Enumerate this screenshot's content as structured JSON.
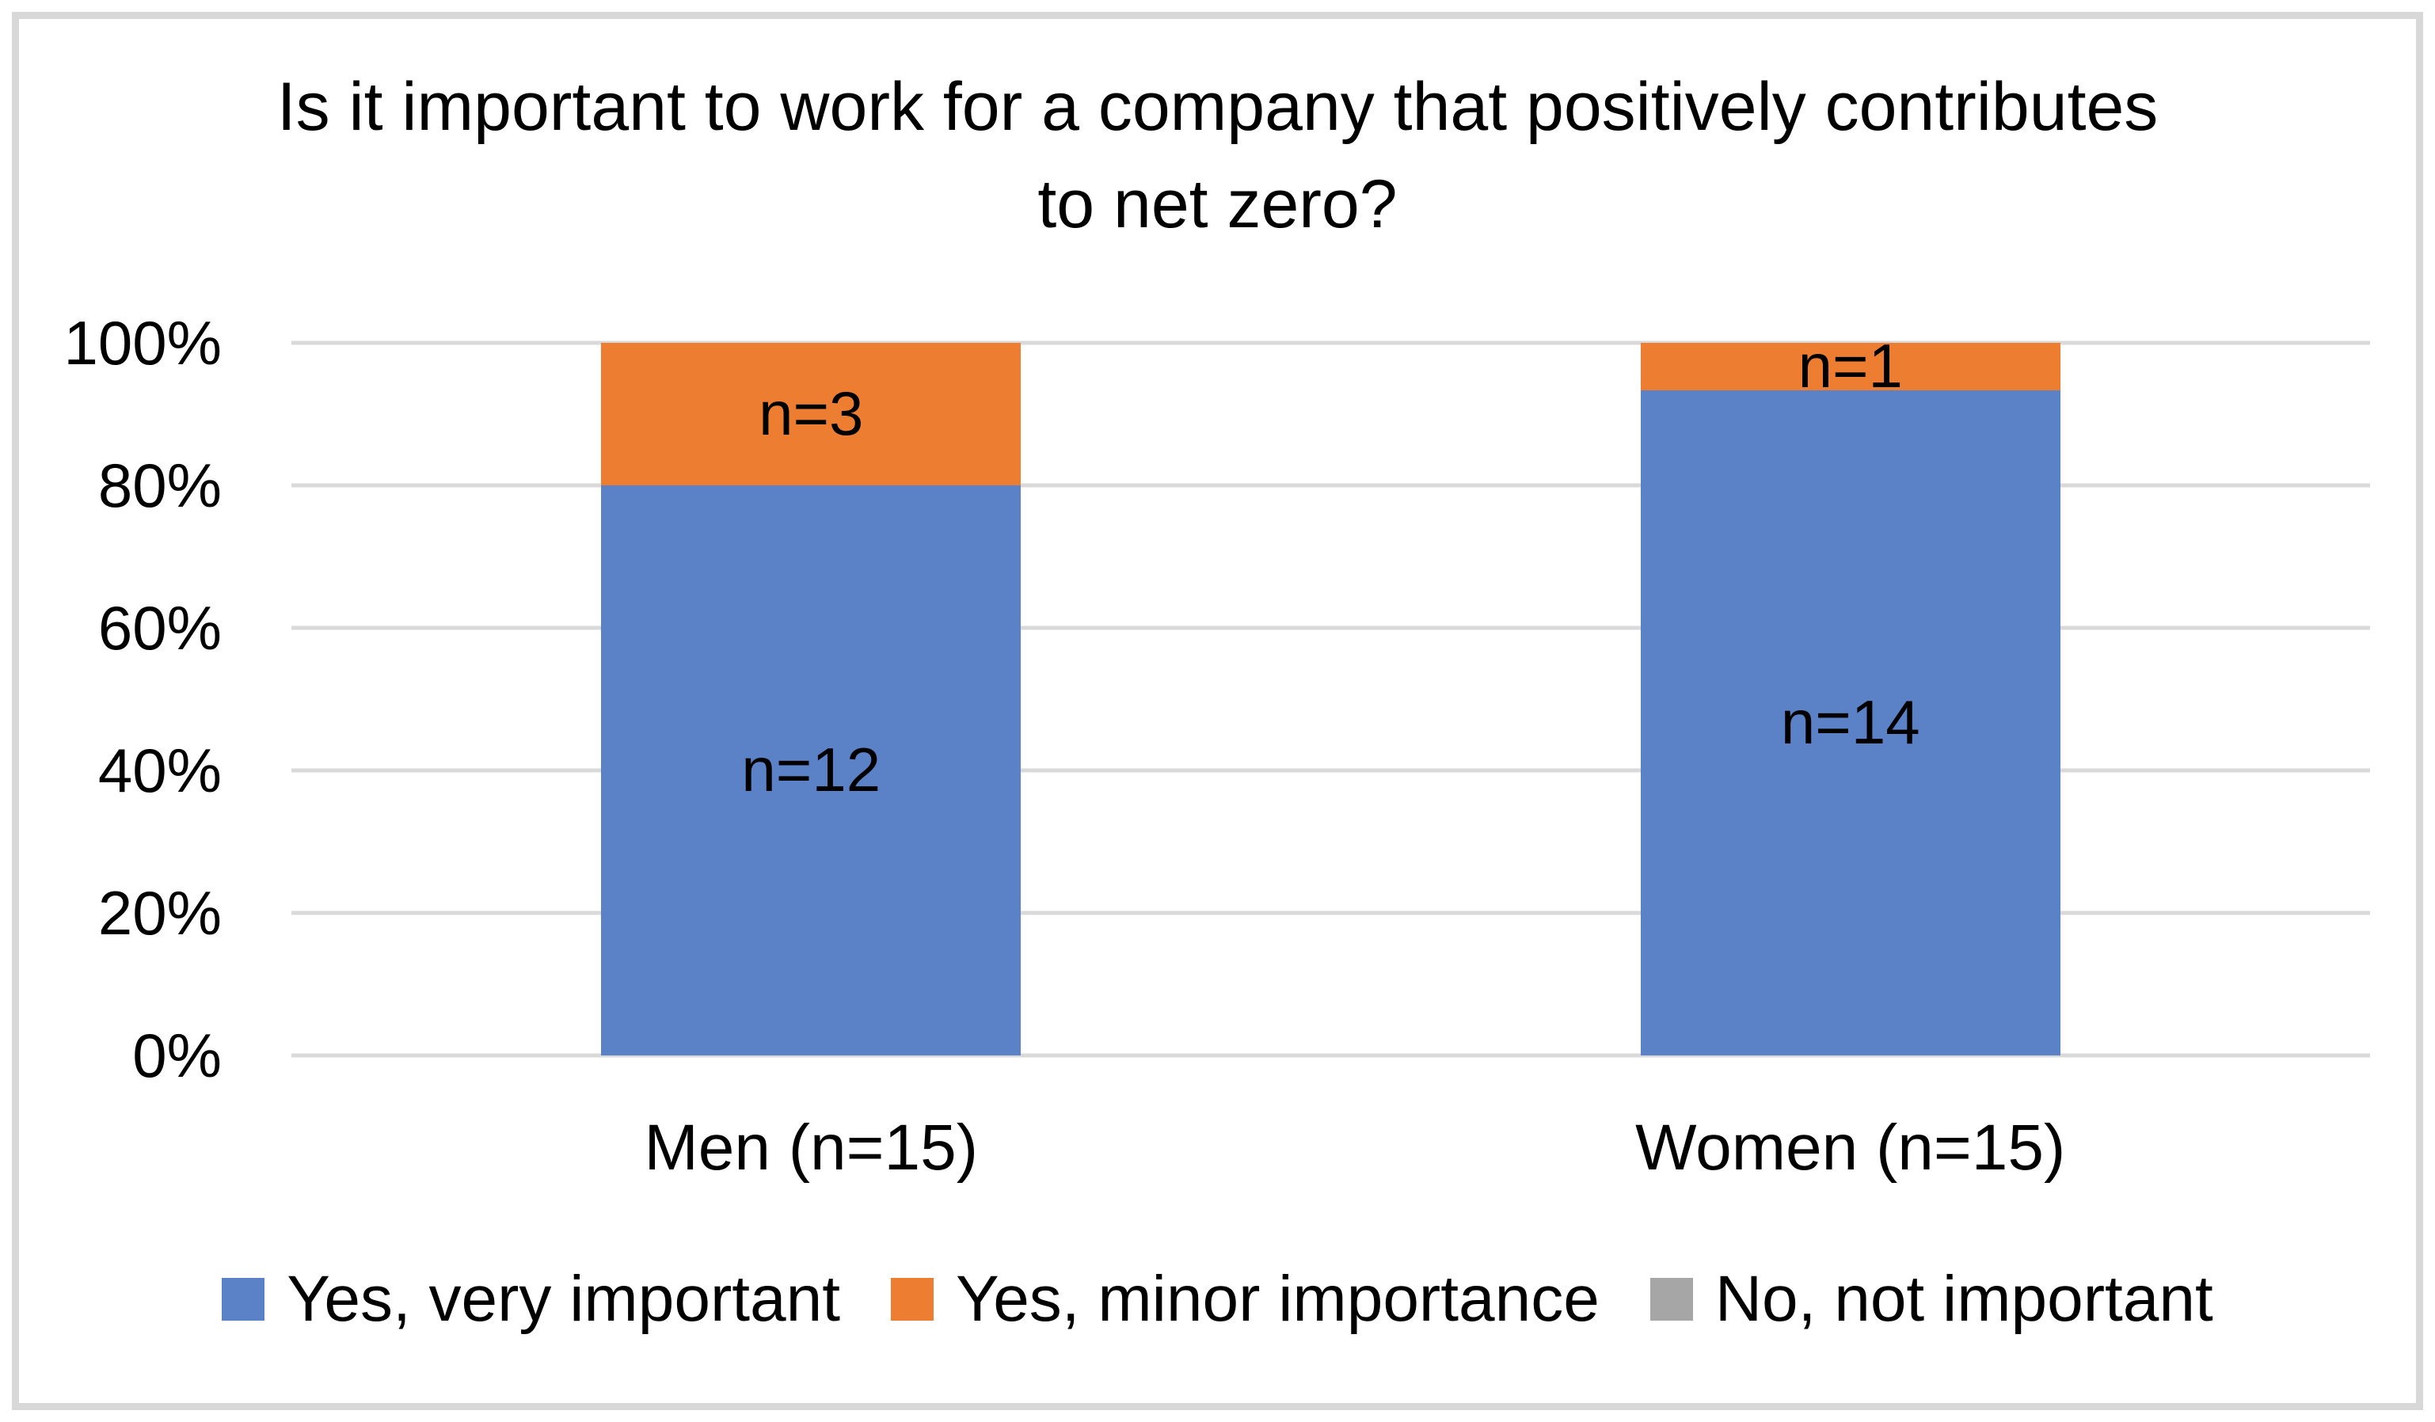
{
  "colors": {
    "series_blue": "#5B81C7",
    "series_orange": "#ED7D31",
    "series_gray": "#A6A6A6",
    "gridline": "#D9D9D9",
    "frame_border": "#D8D8D8",
    "background": "#FFFFFF",
    "text": "#000000"
  },
  "chart_data": {
    "type": "bar",
    "subtype": "stacked-100-percent",
    "title": "Is it important to work for a company that positively contributes to net zero?",
    "categories": [
      "Men (n=15)",
      "Women (n=15)"
    ],
    "category_totals": [
      15,
      15
    ],
    "series": [
      {
        "name": "Yes, very important",
        "color": "#5B81C7",
        "counts": [
          12,
          14
        ],
        "percent_of_total": [
          80.0,
          93.3
        ],
        "data_labels": [
          "n=12",
          "n=14"
        ]
      },
      {
        "name": "Yes, minor importance",
        "color": "#ED7D31",
        "counts": [
          3,
          1
        ],
        "percent_of_total": [
          20.0,
          6.7
        ],
        "data_labels": [
          "n=3",
          "n=1"
        ]
      },
      {
        "name": "No, not important",
        "color": "#A6A6A6",
        "counts": [
          0,
          0
        ],
        "percent_of_total": [
          0.0,
          0.0
        ],
        "data_labels": [
          "",
          ""
        ]
      }
    ],
    "y_axis": {
      "min": 0,
      "max": 100,
      "ticks": [
        {
          "label": "0%",
          "value": 0
        },
        {
          "label": "20%",
          "value": 20
        },
        {
          "label": "40%",
          "value": 40
        },
        {
          "label": "60%",
          "value": 60
        },
        {
          "label": "80%",
          "value": 80
        },
        {
          "label": "100%",
          "value": 100
        }
      ]
    },
    "grid": true,
    "legend_position": "bottom"
  }
}
